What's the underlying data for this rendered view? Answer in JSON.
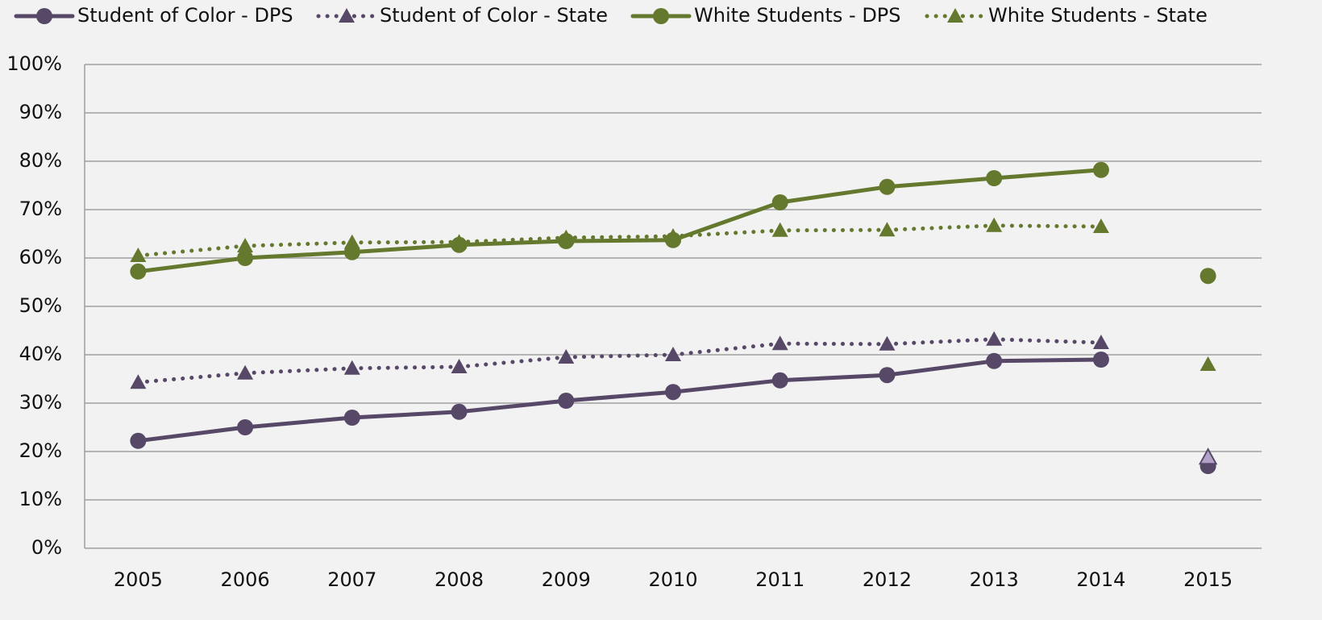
{
  "chart_data": {
    "type": "line",
    "categories": [
      "2005",
      "2006",
      "2007",
      "2008",
      "2009",
      "2010",
      "2011",
      "2012",
      "2013",
      "2014",
      "2015"
    ],
    "last_point_unconnected": true,
    "series": [
      {
        "name": "Student of Color - DPS",
        "color": "#574868",
        "marker": "circle",
        "dash": "solid",
        "values": [
          22.2,
          25,
          27,
          28.2,
          30.5,
          32.3,
          34.7,
          35.8,
          38.7,
          39,
          17
        ]
      },
      {
        "name": "Student of Color - State",
        "color": "#574868",
        "marker": "triangle",
        "dash": "dotted",
        "last_point_color": "#b3a2c7",
        "values": [
          34.3,
          36.2,
          37.2,
          37.5,
          39.5,
          40,
          42.3,
          42.2,
          43.2,
          42.5,
          18.8
        ]
      },
      {
        "name": "White Students - DPS",
        "color": "#64782e",
        "marker": "circle",
        "dash": "solid",
        "values": [
          57.2,
          60,
          61.2,
          62.7,
          63.5,
          63.7,
          71.5,
          74.7,
          76.5,
          78.2,
          56.3
        ]
      },
      {
        "name": "White Students - State",
        "color": "#64782e",
        "marker": "triangle",
        "dash": "dotted",
        "values": [
          60.5,
          62.5,
          63.2,
          63.3,
          64.2,
          64.5,
          65.7,
          65.8,
          66.7,
          66.5,
          38
        ]
      }
    ],
    "ylim": [
      0,
      100
    ],
    "yticks": [
      {
        "value": 0,
        "label": "0%"
      },
      {
        "value": 10,
        "label": "10%"
      },
      {
        "value": 20,
        "label": "20%"
      },
      {
        "value": 30,
        "label": "30%"
      },
      {
        "value": 40,
        "label": "40%"
      },
      {
        "value": 50,
        "label": "50%"
      },
      {
        "value": 60,
        "label": "60%"
      },
      {
        "value": 70,
        "label": "70%"
      },
      {
        "value": 80,
        "label": "80%"
      },
      {
        "value": 90,
        "label": "90%"
      },
      {
        "value": 100,
        "label": "100%"
      }
    ],
    "grid": true
  }
}
